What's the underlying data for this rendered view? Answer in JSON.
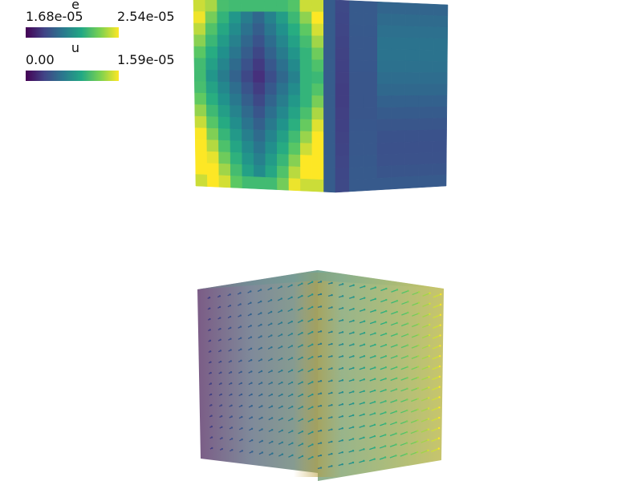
{
  "legends": {
    "e": {
      "title": "e",
      "min_label": "1.68e-05",
      "max_label": "2.54e-05",
      "colormap": "viridis"
    },
    "u": {
      "title": "u",
      "min_label": "0.00",
      "max_label": "1.59e-05",
      "colormap": "viridis"
    }
  },
  "colors": {
    "background": "#ffffff",
    "viridis_low": "#440154",
    "viridis_mid": "#21918c",
    "viridis_high": "#fde725"
  }
}
